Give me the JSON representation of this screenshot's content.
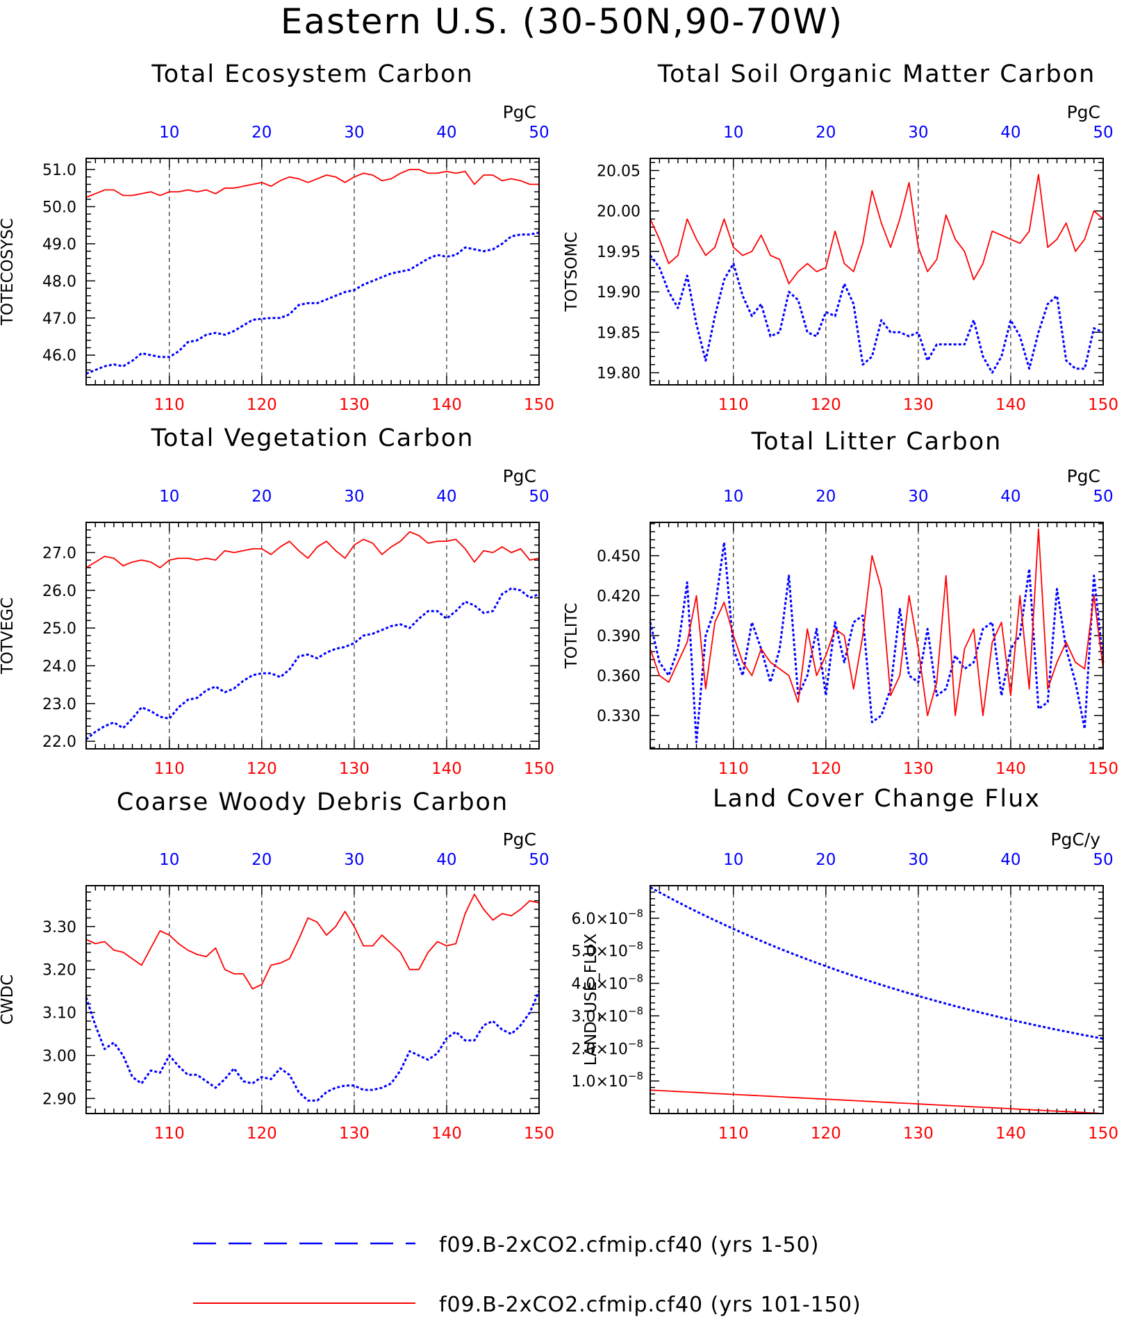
{
  "title": "Eastern U.S. (30-50N,90-70W)",
  "colors": {
    "run1": "#0000ff",
    "run2": "#ff0000",
    "grid": "#000000"
  },
  "legend": {
    "entries": [
      {
        "label": "f09.B-2xCO2.cfmip.cf40 (yrs 1-50)",
        "color": "#0000ff",
        "style": "dashed"
      },
      {
        "label": "f09.B-2xCO2.cfmip.cf40 (yrs 101-150)",
        "color": "#ff0000",
        "style": "solid"
      }
    ]
  },
  "chart_data": [
    {
      "type": "line",
      "title": "Total Ecosystem Carbon",
      "ylabel": "TOTECOSYSC",
      "unit": "PgC",
      "x_bottom": {
        "range": [
          101,
          150
        ],
        "ticks": [
          "110",
          "120",
          "130",
          "140",
          "150"
        ]
      },
      "x_top": {
        "range": [
          1,
          50
        ],
        "ticks": [
          "10",
          "20",
          "30",
          "40",
          "50"
        ]
      },
      "ylim": [
        45.2,
        51.3
      ],
      "yticks": [
        "46.0",
        "47.0",
        "48.0",
        "49.0",
        "50.0",
        "51.0"
      ],
      "series": [
        {
          "values": [
            45.5,
            45.6,
            45.7,
            45.75,
            45.7,
            45.85,
            46.05,
            46.0,
            45.95,
            45.95,
            46.1,
            46.35,
            46.4,
            46.55,
            46.6,
            46.55,
            46.65,
            46.8,
            46.95,
            46.98,
            47.0,
            47.0,
            47.1,
            47.35,
            47.4,
            47.4,
            47.5,
            47.6,
            47.7,
            47.75,
            47.9,
            48.0,
            48.1,
            48.2,
            48.25,
            48.3,
            48.45,
            48.6,
            48.7,
            48.65,
            48.7,
            48.9,
            48.85,
            48.8,
            48.85,
            49.0,
            49.2,
            49.25,
            49.25,
            49.3
          ]
        },
        {
          "values": [
            50.25,
            50.35,
            50.45,
            50.45,
            50.3,
            50.3,
            50.35,
            50.4,
            50.3,
            50.4,
            50.4,
            50.45,
            50.4,
            50.45,
            50.35,
            50.5,
            50.5,
            50.55,
            50.6,
            50.65,
            50.55,
            50.7,
            50.8,
            50.75,
            50.65,
            50.75,
            50.85,
            50.8,
            50.65,
            50.8,
            50.9,
            50.85,
            50.7,
            50.75,
            50.9,
            51.0,
            51.0,
            50.9,
            50.9,
            50.95,
            50.9,
            50.95,
            50.6,
            50.85,
            50.85,
            50.7,
            50.75,
            50.7,
            50.6,
            50.6
          ]
        }
      ]
    },
    {
      "type": "line",
      "title": "Total Soil Organic Matter Carbon",
      "ylabel": "TOTSOMC",
      "unit": "PgC",
      "x_bottom": {
        "range": [
          101,
          150
        ],
        "ticks": [
          "110",
          "120",
          "130",
          "140",
          "150"
        ]
      },
      "x_top": {
        "range": [
          1,
          50
        ],
        "ticks": [
          "10",
          "20",
          "30",
          "40",
          "50"
        ]
      },
      "ylim": [
        19.785,
        20.065
      ],
      "yticks": [
        "19.80",
        "19.85",
        "19.90",
        "19.95",
        "20.00",
        "20.05"
      ],
      "series": [
        {
          "values": [
            19.945,
            19.93,
            19.9,
            19.88,
            19.92,
            19.86,
            19.815,
            19.87,
            19.915,
            19.935,
            19.895,
            19.87,
            19.885,
            19.845,
            19.85,
            19.9,
            19.89,
            19.85,
            19.845,
            19.875,
            19.87,
            19.91,
            19.885,
            19.81,
            19.82,
            19.865,
            19.85,
            19.85,
            19.845,
            19.85,
            19.815,
            19.835,
            19.835,
            19.835,
            19.835,
            19.865,
            19.82,
            19.8,
            19.82,
            19.865,
            19.845,
            19.805,
            19.85,
            19.885,
            19.895,
            19.815,
            19.805,
            19.805,
            19.855,
            19.85
          ]
        },
        {
          "values": [
            19.99,
            19.965,
            19.935,
            19.945,
            19.99,
            19.965,
            19.945,
            19.955,
            19.99,
            19.955,
            19.945,
            19.95,
            19.97,
            19.945,
            19.94,
            19.91,
            19.925,
            19.935,
            19.925,
            19.93,
            19.975,
            19.935,
            19.925,
            19.96,
            20.025,
            19.985,
            19.955,
            19.99,
            20.035,
            19.955,
            19.925,
            19.94,
            19.995,
            19.965,
            19.95,
            19.915,
            19.935,
            19.975,
            19.97,
            19.965,
            19.96,
            19.975,
            20.045,
            19.955,
            19.965,
            19.985,
            19.95,
            19.965,
            20.0,
            19.99
          ]
        }
      ]
    },
    {
      "type": "line",
      "title": "Total Vegetation Carbon",
      "ylabel": "TOTVEGC",
      "unit": "PgC",
      "x_bottom": {
        "range": [
          101,
          150
        ],
        "ticks": [
          "110",
          "120",
          "130",
          "140",
          "150"
        ]
      },
      "x_top": {
        "range": [
          1,
          50
        ],
        "ticks": [
          "10",
          "20",
          "30",
          "40",
          "50"
        ]
      },
      "ylim": [
        21.8,
        27.8
      ],
      "yticks": [
        "22.0",
        "23.0",
        "24.0",
        "25.0",
        "26.0",
        "27.0"
      ],
      "series": [
        {
          "values": [
            22.05,
            22.25,
            22.4,
            22.5,
            22.35,
            22.6,
            22.9,
            22.8,
            22.65,
            22.6,
            22.9,
            23.1,
            23.15,
            23.35,
            23.45,
            23.3,
            23.4,
            23.6,
            23.75,
            23.8,
            23.8,
            23.7,
            23.9,
            24.25,
            24.3,
            24.2,
            24.35,
            24.45,
            24.5,
            24.6,
            24.8,
            24.85,
            24.95,
            25.05,
            25.1,
            25.0,
            25.25,
            25.45,
            25.45,
            25.25,
            25.45,
            25.7,
            25.6,
            25.4,
            25.45,
            25.9,
            26.05,
            26.0,
            25.8,
            25.9
          ]
        },
        {
          "values": [
            26.6,
            26.75,
            26.9,
            26.85,
            26.65,
            26.75,
            26.8,
            26.75,
            26.6,
            26.8,
            26.85,
            26.85,
            26.8,
            26.85,
            26.8,
            27.05,
            27.0,
            27.05,
            27.1,
            27.1,
            26.95,
            27.15,
            27.3,
            27.05,
            26.85,
            27.15,
            27.3,
            27.05,
            26.85,
            27.2,
            27.35,
            27.25,
            26.95,
            27.15,
            27.3,
            27.55,
            27.45,
            27.25,
            27.3,
            27.3,
            27.35,
            27.1,
            26.75,
            27.05,
            27.0,
            27.15,
            27.0,
            27.1,
            26.8,
            26.85
          ]
        }
      ]
    },
    {
      "type": "line",
      "title": "Total Litter Carbon",
      "ylabel": "TOTLITC",
      "unit": "PgC",
      "x_bottom": {
        "range": [
          101,
          150
        ],
        "ticks": [
          "110",
          "120",
          "130",
          "140",
          "150"
        ]
      },
      "x_top": {
        "range": [
          1,
          50
        ],
        "ticks": [
          "10",
          "20",
          "30",
          "40",
          "50"
        ]
      },
      "ylim": [
        0.305,
        0.475
      ],
      "yticks": [
        "0.330",
        "0.360",
        "0.390",
        "0.420",
        "0.450"
      ],
      "series": [
        {
          "values": [
            0.4,
            0.37,
            0.36,
            0.38,
            0.43,
            0.31,
            0.39,
            0.41,
            0.46,
            0.38,
            0.36,
            0.4,
            0.38,
            0.355,
            0.38,
            0.435,
            0.345,
            0.36,
            0.395,
            0.345,
            0.4,
            0.37,
            0.4,
            0.405,
            0.325,
            0.33,
            0.35,
            0.41,
            0.36,
            0.355,
            0.395,
            0.345,
            0.35,
            0.375,
            0.365,
            0.37,
            0.395,
            0.4,
            0.345,
            0.38,
            0.39,
            0.44,
            0.335,
            0.34,
            0.425,
            0.38,
            0.355,
            0.32,
            0.435,
            0.37
          ]
        },
        {
          "values": [
            0.38,
            0.36,
            0.355,
            0.37,
            0.385,
            0.42,
            0.35,
            0.4,
            0.415,
            0.39,
            0.37,
            0.36,
            0.38,
            0.37,
            0.365,
            0.36,
            0.34,
            0.395,
            0.36,
            0.375,
            0.395,
            0.39,
            0.35,
            0.39,
            0.45,
            0.425,
            0.345,
            0.36,
            0.42,
            0.38,
            0.33,
            0.355,
            0.435,
            0.33,
            0.38,
            0.395,
            0.33,
            0.385,
            0.4,
            0.345,
            0.42,
            0.35,
            0.47,
            0.35,
            0.37,
            0.385,
            0.37,
            0.365,
            0.42,
            0.365
          ]
        }
      ]
    },
    {
      "type": "line",
      "title": "Coarse Woody Debris Carbon",
      "ylabel": "CWDC",
      "unit": "PgC",
      "x_bottom": {
        "range": [
          101,
          150
        ],
        "ticks": [
          "110",
          "120",
          "130",
          "140",
          "150"
        ]
      },
      "x_top": {
        "range": [
          1,
          50
        ],
        "ticks": [
          "10",
          "20",
          "30",
          "40",
          "50"
        ]
      },
      "ylim": [
        2.865,
        3.395
      ],
      "yticks": [
        "2.90",
        "3.00",
        "3.10",
        "3.20",
        "3.30"
      ],
      "series": [
        {
          "values": [
            3.135,
            3.07,
            3.015,
            3.03,
            3.0,
            2.95,
            2.935,
            2.965,
            2.96,
            3.0,
            2.975,
            2.955,
            2.955,
            2.94,
            2.925,
            2.945,
            2.97,
            2.94,
            2.935,
            2.95,
            2.945,
            2.97,
            2.955,
            2.915,
            2.895,
            2.895,
            2.915,
            2.925,
            2.93,
            2.93,
            2.92,
            2.92,
            2.925,
            2.935,
            2.965,
            3.01,
            3.0,
            2.99,
            3.005,
            3.04,
            3.055,
            3.035,
            3.035,
            3.07,
            3.08,
            3.06,
            3.05,
            3.07,
            3.1,
            3.15
          ]
        },
        {
          "values": [
            3.27,
            3.26,
            3.265,
            3.245,
            3.24,
            3.225,
            3.21,
            3.25,
            3.29,
            3.28,
            3.26,
            3.245,
            3.235,
            3.23,
            3.25,
            3.2,
            3.19,
            3.19,
            3.155,
            3.165,
            3.21,
            3.215,
            3.225,
            3.27,
            3.32,
            3.31,
            3.28,
            3.3,
            3.335,
            3.3,
            3.255,
            3.255,
            3.28,
            3.26,
            3.24,
            3.2,
            3.2,
            3.24,
            3.265,
            3.255,
            3.26,
            3.33,
            3.375,
            3.34,
            3.315,
            3.33,
            3.325,
            3.34,
            3.36,
            3.355
          ]
        }
      ]
    },
    {
      "type": "line",
      "title": "Land Cover Change Flux",
      "ylabel": "LAND_USE_FLUX",
      "unit": "PgC/y",
      "x_bottom": {
        "range": [
          101,
          150
        ],
        "ticks": [
          "110",
          "120",
          "130",
          "140",
          "150"
        ]
      },
      "x_top": {
        "range": [
          1,
          50
        ],
        "ticks": [
          "10",
          "20",
          "30",
          "40",
          "50"
        ]
      },
      "ylim": [
        0.0,
        7.0
      ],
      "yticks_exp": -8,
      "yticks": [
        "1.0",
        "2.0",
        "3.0",
        "4.0",
        "5.0",
        "6.0"
      ],
      "series": [
        {
          "exponential": {
            "start": 6.95,
            "end": 2.3
          }
        },
        {
          "exponential": {
            "start": 0.72,
            "end": 0.0
          },
          "linear": true
        }
      ]
    }
  ]
}
